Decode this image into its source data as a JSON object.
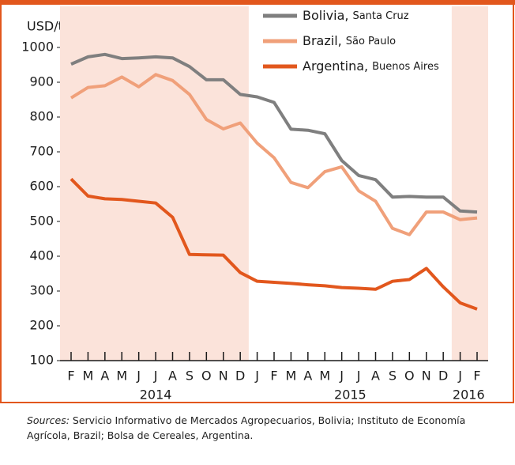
{
  "chart_data": {
    "type": "line",
    "y_label": "USD/tonne",
    "categories": [
      "F",
      "M",
      "A",
      "M",
      "J",
      "J",
      "A",
      "S",
      "O",
      "N",
      "D",
      "J",
      "F",
      "M",
      "A",
      "M",
      "J",
      "J",
      "A",
      "S",
      "O",
      "N",
      "D",
      "J",
      "F"
    ],
    "years": [
      "2014",
      "2015",
      "2016"
    ],
    "series": [
      {
        "name": "Bolivia,",
        "location": "Santa Cruz",
        "color": "#7f7f7f",
        "values": [
          952,
          973,
          980,
          968,
          970,
          973,
          970,
          945,
          907,
          907,
          865,
          858,
          842,
          765,
          762,
          752,
          675,
          632,
          620,
          570,
          572,
          570,
          570,
          530,
          527
        ]
      },
      {
        "name": "Brazil,",
        "location": "São Paulo",
        "color": "#f0a07a",
        "values": [
          855,
          885,
          890,
          915,
          887,
          922,
          905,
          865,
          793,
          766,
          783,
          725,
          683,
          612,
          597,
          643,
          657,
          588,
          558,
          480,
          462,
          527,
          527,
          505,
          510
        ]
      },
      {
        "name": "Argentina,",
        "location": "Buenos Aires",
        "color": "#e2571d",
        "values": [
          622,
          573,
          565,
          563,
          558,
          553,
          512,
          405,
          404,
          403,
          353,
          328,
          325,
          322,
          318,
          315,
          310,
          308,
          305,
          328,
          333,
          365,
          312,
          266,
          248
        ]
      }
    ],
    "ylim": [
      100,
      1000
    ],
    "yticks": [
      100,
      200,
      300,
      400,
      500,
      600,
      700,
      800,
      900,
      1000
    ],
    "sources_label": "Sources:",
    "sources_text": "Servicio Informativo de Mercados Agropecuarios, Bolivia; Instituto de Economía Agrícola, Brazil; Bolsa de Cereales, Argentina."
  }
}
